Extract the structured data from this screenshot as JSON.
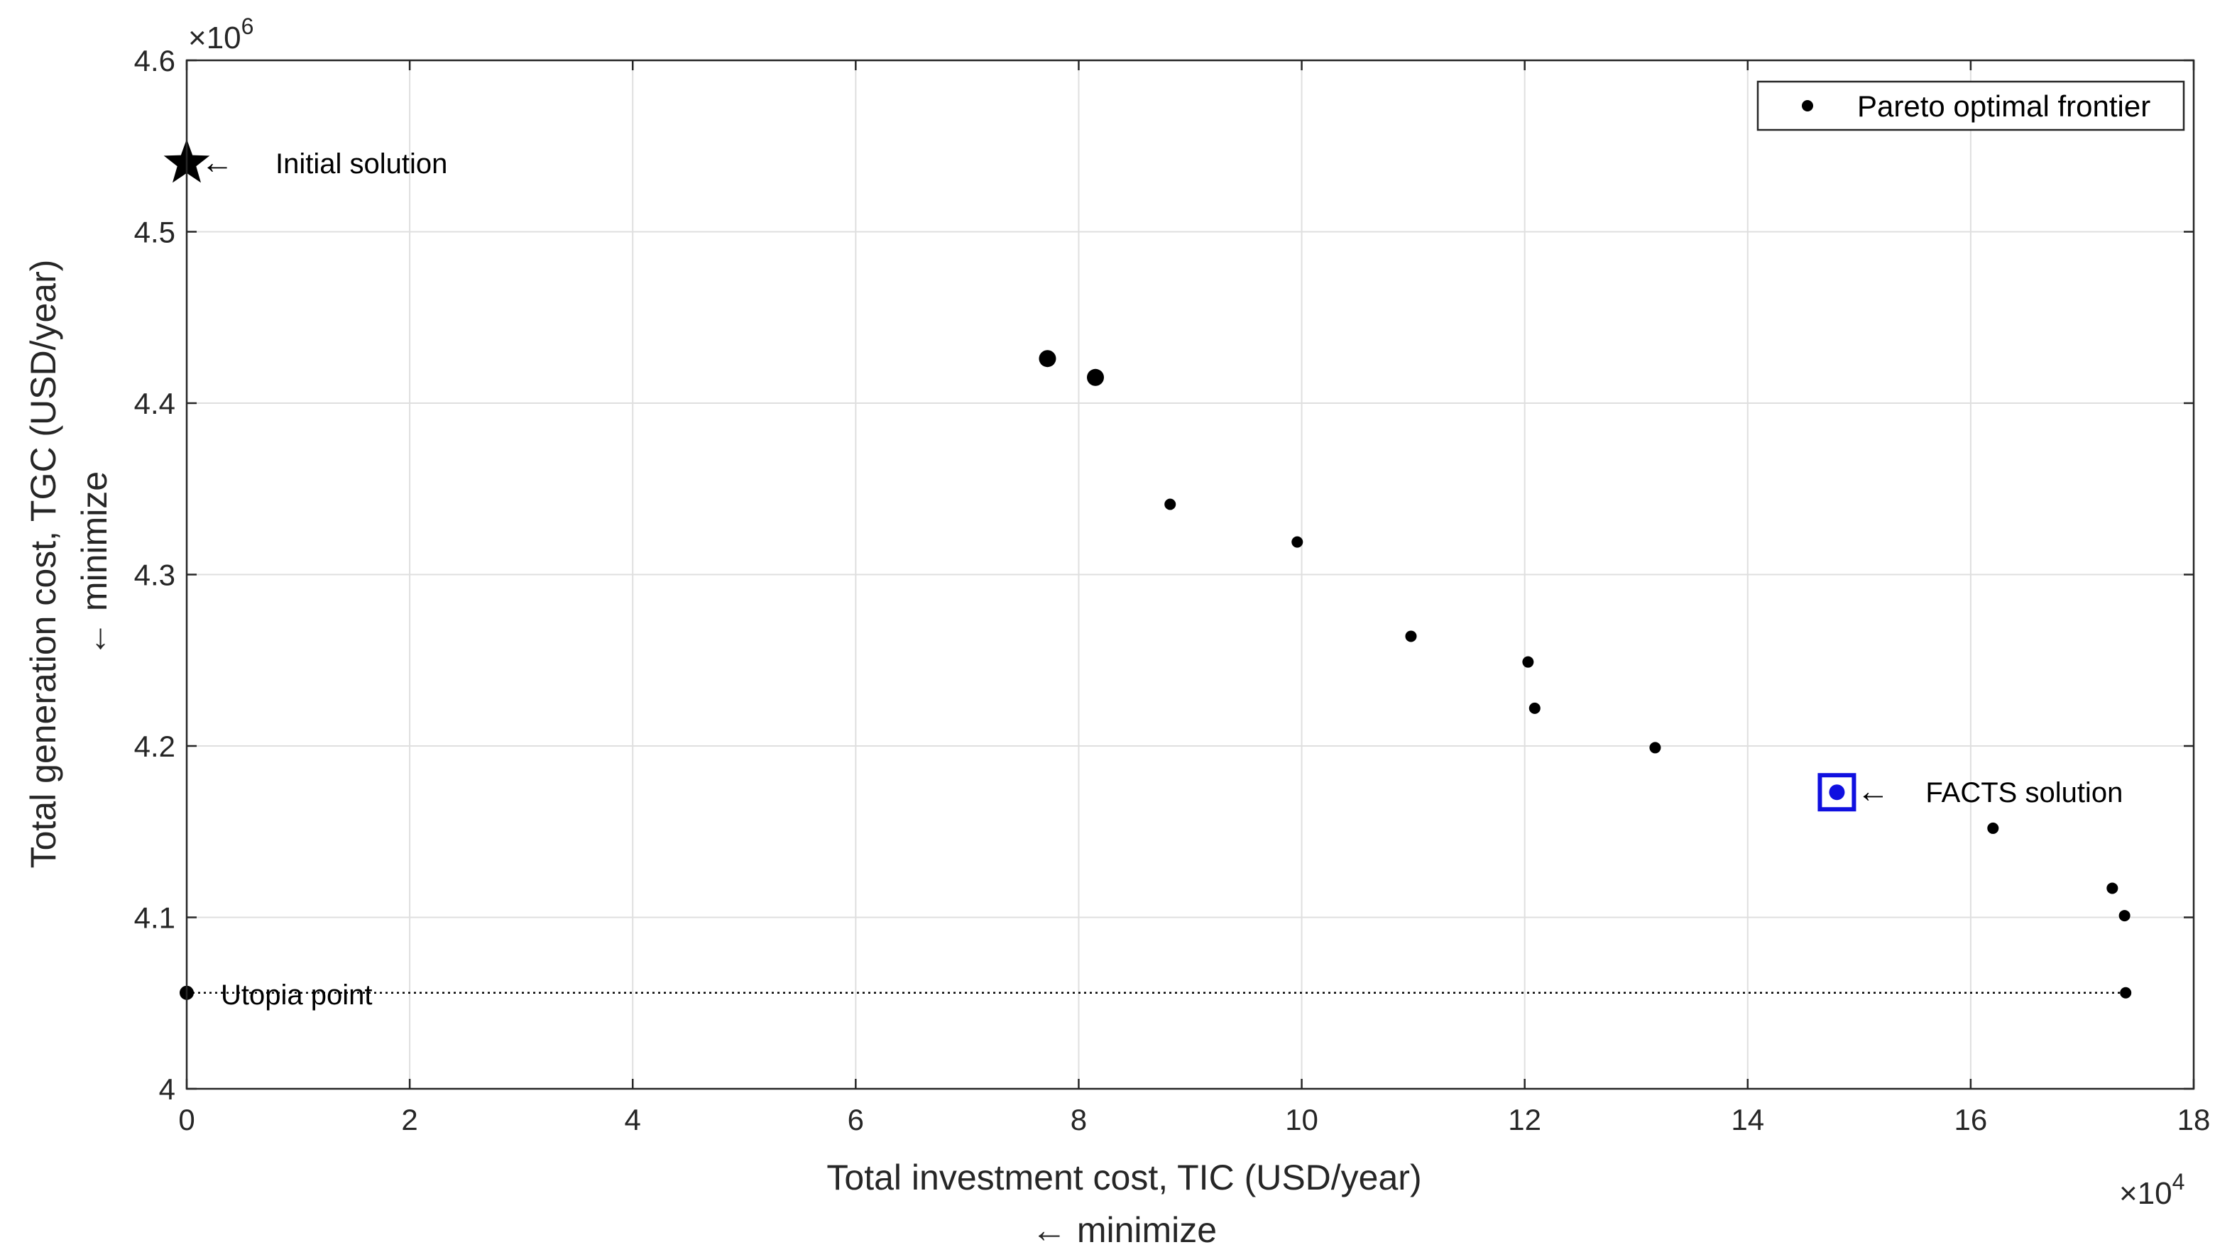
{
  "chart_data": {
    "type": "scatter",
    "xlabel": "Total investment cost, TIC (USD/year)",
    "xlabel_sub": "← minimize",
    "ylabel": "Total generation cost, TGC (USD/year)",
    "ylabel_sub": "← minimize",
    "x_multiplier": "×10",
    "x_multiplier_exp": "4",
    "y_multiplier": "×10",
    "y_multiplier_exp": "6",
    "xlim": [
      0,
      18
    ],
    "ylim": [
      4.0,
      4.6
    ],
    "x_ticks": [
      0,
      2,
      4,
      6,
      8,
      10,
      12,
      14,
      16,
      18
    ],
    "y_ticks": [
      4.0,
      4.1,
      4.2,
      4.3,
      4.4,
      4.5,
      4.6
    ],
    "x_tick_labels": [
      "0",
      "2",
      "4",
      "6",
      "8",
      "10",
      "12",
      "14",
      "16",
      "18"
    ],
    "y_tick_labels": [
      "4",
      "4.1",
      "4.2",
      "4.3",
      "4.4",
      "4.5",
      "4.6"
    ],
    "grid": true,
    "legend": {
      "position": "top-right",
      "entries": [
        "Pareto optimal frontier"
      ]
    },
    "series": [
      {
        "name": "Pareto optimal frontier",
        "x": [
          7.72,
          8.15,
          8.82,
          9.96,
          10.98,
          12.03,
          12.09,
          13.17,
          16.2,
          17.27,
          17.38,
          17.39
        ],
        "y": [
          4.426,
          4.415,
          4.341,
          4.319,
          4.264,
          4.249,
          4.222,
          4.199,
          4.152,
          4.117,
          4.101,
          4.056
        ],
        "size": [
          "large",
          "large",
          "small",
          "small",
          "small",
          "small",
          "small",
          "small",
          "small",
          "small",
          "small",
          "small"
        ]
      }
    ],
    "special_points": {
      "initial": {
        "x": 0.0,
        "y": 4.54,
        "label": "Initial solution",
        "marker": "star"
      },
      "facts": {
        "x": 14.8,
        "y": 4.173,
        "label": "FACTS solution",
        "marker": "blue-square",
        "color": "#1010e0"
      },
      "utopia": {
        "x": 0.0,
        "y": 4.056,
        "label": "Utopia point",
        "marker": "dot"
      }
    },
    "utopia_line": {
      "from_x": 0.0,
      "to_x": 17.39,
      "y": 4.056,
      "style": "dotted"
    },
    "arrow_glyph": "←"
  }
}
